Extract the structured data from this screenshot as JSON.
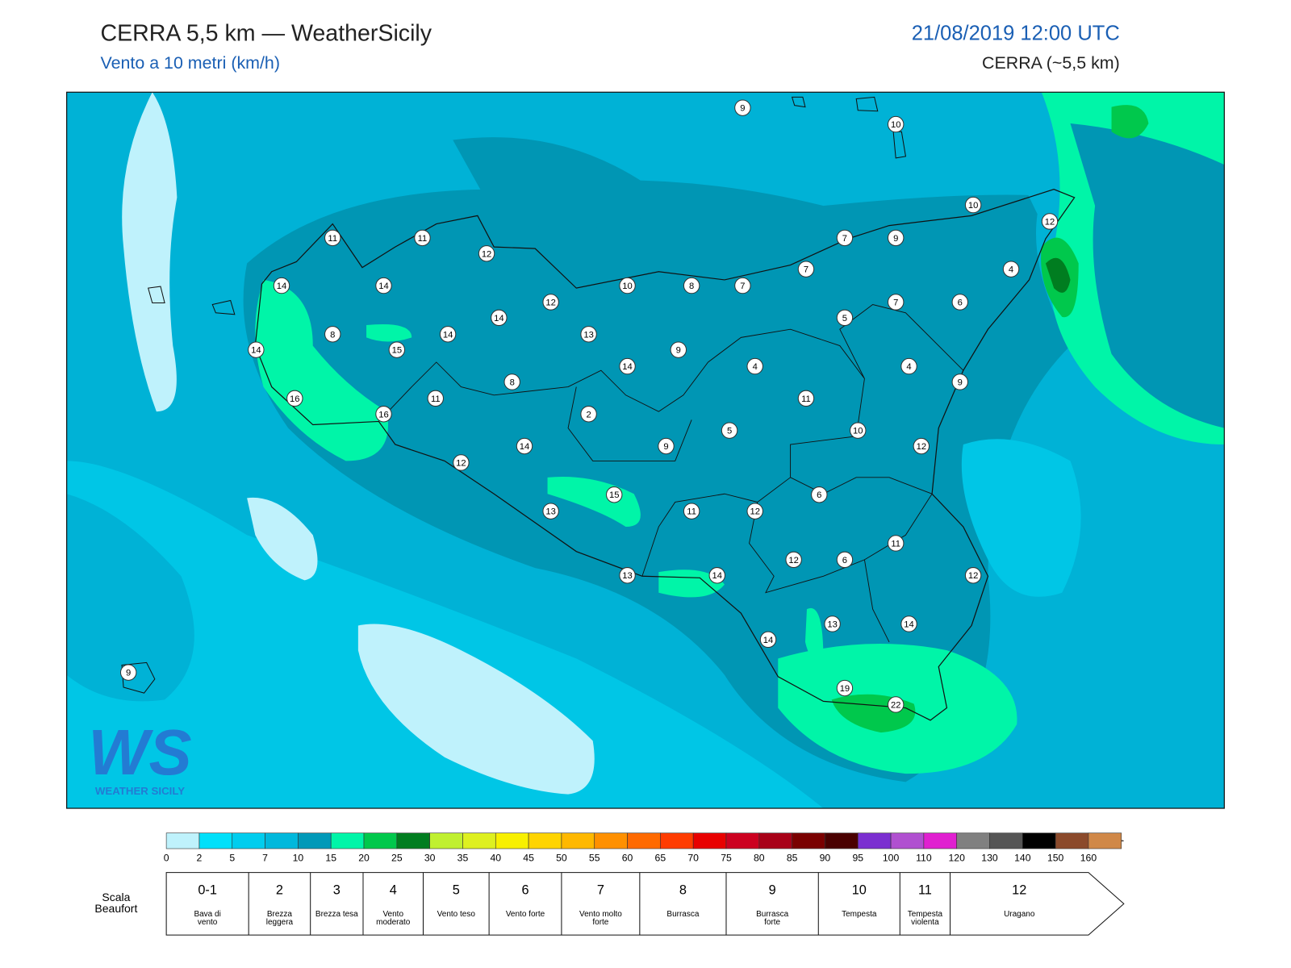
{
  "header": {
    "title": "CERRA 5,5 km — WeatherSicily",
    "subtitle": "Vento a 10 metri (km/h)",
    "datetime": "21/08/2019 12:00 UTC",
    "model": "CERRA (~5,5 km)"
  },
  "map": {
    "stations": [
      9,
      10,
      10,
      12,
      11,
      11,
      12,
      7,
      9,
      7,
      4,
      14,
      14,
      10,
      8,
      7,
      12,
      5,
      7,
      6,
      14,
      8,
      14,
      13,
      15,
      9,
      14,
      14,
      4,
      4,
      8,
      9,
      16,
      11,
      11,
      16,
      2,
      5,
      10,
      14,
      9,
      12,
      12,
      6,
      15,
      13,
      11,
      12,
      11,
      12,
      6,
      13,
      14,
      12,
      13,
      14,
      14,
      9,
      19,
      22
    ]
  },
  "logo": {
    "mark": "WS",
    "name": "WEATHER SICILY"
  },
  "legend": {
    "colors": [
      "#bff2fc",
      "#00e0fa",
      "#00cdee",
      "#00b8dc",
      "#0099b8",
      "#00f5a8",
      "#00c84c",
      "#007d20",
      "#c0f030",
      "#def020",
      "#f8f000",
      "#ffd400",
      "#ffb800",
      "#ff9000",
      "#ff6a00",
      "#ff3c00",
      "#e80000",
      "#cc0020",
      "#a80018",
      "#7a0000",
      "#4a0000",
      "#7b2fd0",
      "#b050d0",
      "#e020d0",
      "#808080",
      "#555555",
      "#000000",
      "#8b4a2b",
      "#d08848"
    ],
    "ticks": [
      0,
      2,
      5,
      7,
      10,
      15,
      20,
      25,
      30,
      35,
      40,
      45,
      50,
      55,
      60,
      65,
      70,
      75,
      80,
      85,
      90,
      95,
      100,
      110,
      120,
      130,
      140,
      150,
      160
    ]
  },
  "beaufort": {
    "title": "Scala Beaufort",
    "levels": [
      {
        "force": "0-1",
        "label": "Bava di vento"
      },
      {
        "force": 2,
        "label": "Brezza leggera"
      },
      {
        "force": 3,
        "label": "Brezza tesa"
      },
      {
        "force": 4,
        "label": "Vento moderato"
      },
      {
        "force": 5,
        "label": "Vento teso"
      },
      {
        "force": 6,
        "label": "Vento forte"
      },
      {
        "force": 7,
        "label": "Vento molto forte"
      },
      {
        "force": 8,
        "label": "Burrasca"
      },
      {
        "force": 9,
        "label": "Burrasca forte"
      },
      {
        "force": 10,
        "label": "Tempesta"
      },
      {
        "force": 11,
        "label": "Tempesta violenta"
      },
      {
        "force": 12,
        "label": "Uragano"
      }
    ]
  }
}
